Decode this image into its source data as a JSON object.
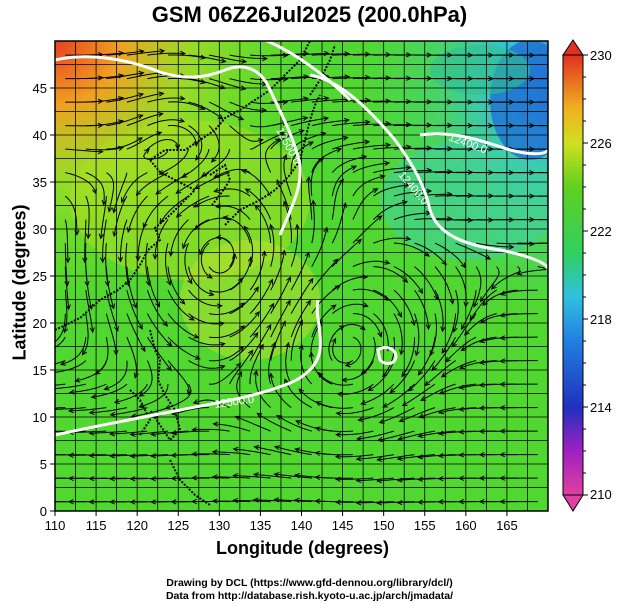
{
  "title": "GSM 06Z26Jul2025 (200.0hPa)",
  "x_axis": {
    "title": "Longitude (degrees)",
    "ticks": [
      "110",
      "115",
      "120",
      "125",
      "130",
      "135",
      "140",
      "145",
      "150",
      "155",
      "160",
      "165"
    ]
  },
  "y_axis": {
    "title": "Latitude  (degrees)",
    "ticks": [
      "0",
      "5",
      "10",
      "15",
      "20",
      "25",
      "30",
      "35",
      "40",
      "45"
    ]
  },
  "colorbar": {
    "labels": [
      "230",
      "226",
      "222",
      "218",
      "214",
      "210"
    ]
  },
  "contour_labels": [
    "12500.0",
    "12400.0",
    "12400.0",
    "12500.0"
  ],
  "footer": {
    "line1": "Drawing by DCL (https://www.gfd-dennou.org/library/dcl/)",
    "line2": "Data from http://database.rish.kyoto-u.ac.jp/arch/jmadata/"
  }
}
